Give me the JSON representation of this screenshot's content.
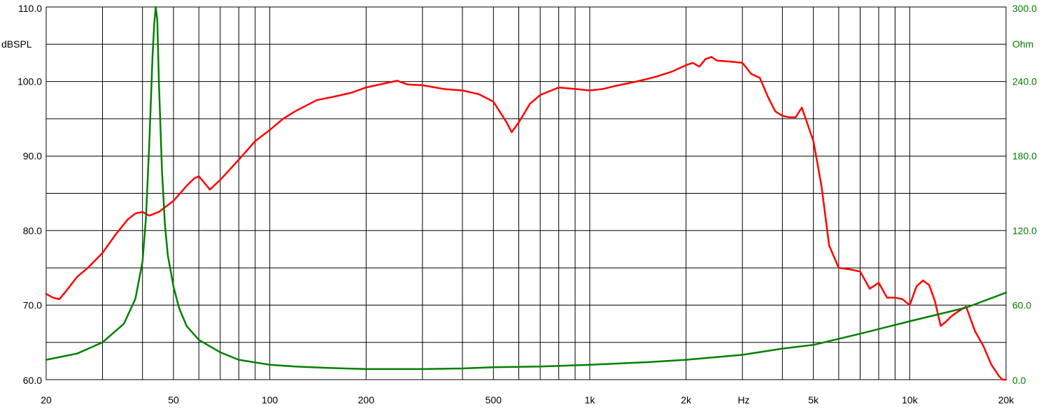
{
  "chart_data": {
    "type": "line",
    "title": "",
    "x_scale": "log",
    "xlim": [
      20,
      20000
    ],
    "x_tick_values": [
      20,
      50,
      100,
      200,
      500,
      1000,
      2000,
      5000,
      10000,
      20000
    ],
    "x_tick_labels": [
      "20",
      "50",
      "100",
      "200",
      "500",
      "1k",
      "2k",
      "5k",
      "10k",
      "20k"
    ],
    "xlabel": "Hz",
    "y_left": {
      "label": "dBSPL",
      "lim": [
        60,
        110
      ],
      "tick_values": [
        60,
        70,
        80,
        90,
        100,
        110
      ],
      "tick_labels": [
        "60.0",
        "70.0",
        "80.0",
        "90.0",
        "100.0",
        "110.0"
      ]
    },
    "y_right": {
      "label": "Ohm",
      "lim": [
        0,
        300
      ],
      "tick_values": [
        0,
        60,
        120,
        180,
        240,
        300
      ],
      "tick_labels": [
        "0.0",
        "60.0",
        "120.0",
        "180.0",
        "240.0",
        "300.0"
      ]
    },
    "grid": true,
    "series": [
      {
        "axis": "left",
        "color": "#ff0000",
        "x": [
          20,
          21,
          22,
          23,
          25,
          27,
          30,
          33,
          36,
          38,
          40,
          42,
          45,
          50,
          55,
          58,
          60,
          65,
          70,
          80,
          90,
          100,
          110,
          120,
          140,
          160,
          180,
          200,
          220,
          250,
          270,
          300,
          350,
          400,
          450,
          500,
          550,
          570,
          600,
          650,
          700,
          800,
          900,
          1000,
          1100,
          1200,
          1400,
          1600,
          1800,
          2000,
          2100,
          2200,
          2300,
          2400,
          2500,
          2700,
          3000,
          3200,
          3400,
          3600,
          3800,
          4000,
          4200,
          4400,
          4600,
          5000,
          5300,
          5600,
          6000,
          6500,
          7000,
          7500,
          8000,
          8500,
          9000,
          9500,
          10000,
          10500,
          11000,
          11500,
          12000,
          12500,
          13000,
          13500,
          14000,
          15000,
          16000,
          17000,
          18000,
          19000,
          19500,
          20000
        ],
        "y": [
          71.5,
          71.0,
          70.8,
          71.8,
          73.8,
          75.0,
          77.0,
          79.5,
          81.5,
          82.3,
          82.5,
          82.0,
          82.5,
          84.0,
          86.0,
          87.0,
          87.3,
          85.5,
          86.8,
          89.5,
          92.0,
          93.5,
          95.0,
          96.0,
          97.5,
          98.0,
          98.5,
          99.2,
          99.6,
          100.1,
          99.6,
          99.5,
          99.0,
          98.8,
          98.3,
          97.3,
          94.5,
          93.2,
          94.5,
          97.0,
          98.2,
          99.2,
          99.0,
          98.8,
          99.0,
          99.4,
          100.0,
          100.6,
          101.3,
          102.2,
          102.5,
          102.0,
          103.0,
          103.3,
          102.8,
          102.7,
          102.5,
          101.0,
          100.5,
          98.0,
          96.0,
          95.4,
          95.2,
          95.2,
          96.5,
          92.0,
          86.0,
          78.0,
          75.0,
          74.8,
          74.5,
          72.2,
          73.0,
          71.0,
          71.0,
          70.8,
          70.0,
          72.5,
          73.3,
          72.7,
          70.5,
          67.2,
          67.8,
          68.5,
          69.0,
          69.8,
          66.5,
          64.5,
          62.0,
          60.5,
          60.0,
          60.0
        ]
      },
      {
        "axis": "right",
        "color": "#008000",
        "x": [
          20,
          25,
          30,
          35,
          38,
          40,
          41,
          42,
          43,
          43.5,
          44,
          44.5,
          45,
          46,
          47,
          48,
          50,
          52,
          55,
          60,
          70,
          80,
          100,
          120,
          150,
          200,
          300,
          400,
          500,
          700,
          1000,
          1500,
          2000,
          3000,
          4000,
          5000,
          7000,
          10000,
          15000,
          20000
        ],
        "y": [
          16,
          21,
          30,
          45,
          65,
          95,
          130,
          190,
          260,
          285,
          300,
          290,
          240,
          170,
          125,
          100,
          75,
          58,
          43,
          32,
          22,
          16,
          12,
          10.5,
          9.5,
          8.5,
          8.5,
          9,
          10,
          10.5,
          12,
          14,
          16,
          20,
          25,
          28,
          37,
          47,
          58,
          70
        ]
      }
    ]
  }
}
